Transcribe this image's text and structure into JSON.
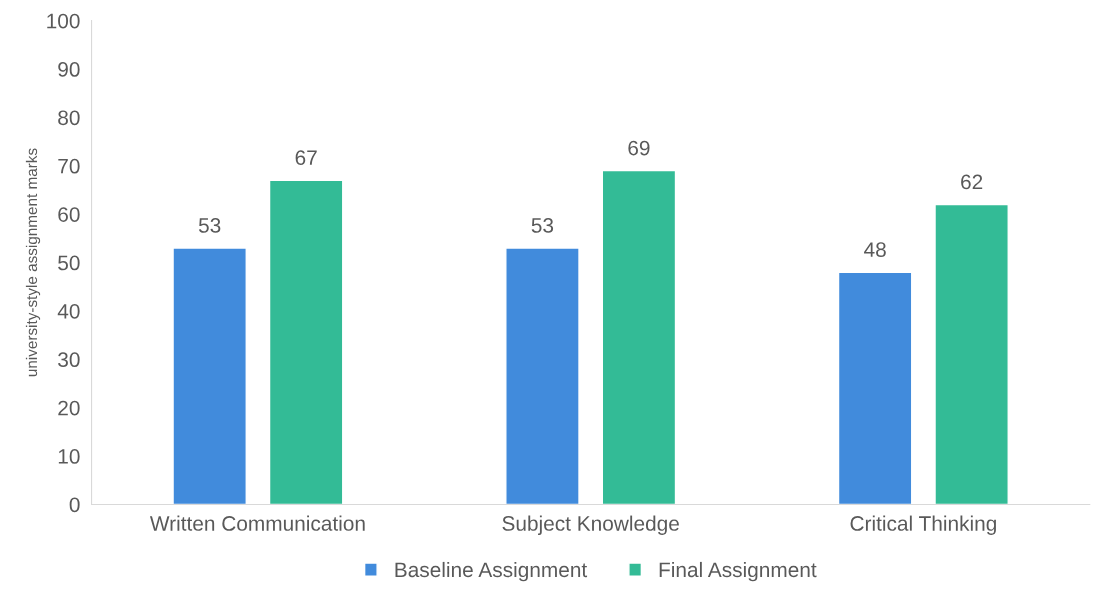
{
  "chart_data": {
    "type": "bar",
    "ylabel": "university-style assignment marks",
    "categories": [
      "Written Communication",
      "Subject Knowledge",
      "Critical Thinking"
    ],
    "series": [
      {
        "name": "Baseline Assignment",
        "color": "#418bdc",
        "values": [
          53,
          53,
          48
        ]
      },
      {
        "name": "Final Assignment",
        "color": "#33bb96",
        "values": [
          67,
          69,
          62
        ]
      }
    ],
    "ylim": [
      0,
      100
    ],
    "yticks": [
      0,
      10,
      20,
      30,
      40,
      50,
      60,
      70,
      80,
      90,
      100
    ],
    "data_labels": true,
    "legend": "bottom",
    "grid": false
  }
}
